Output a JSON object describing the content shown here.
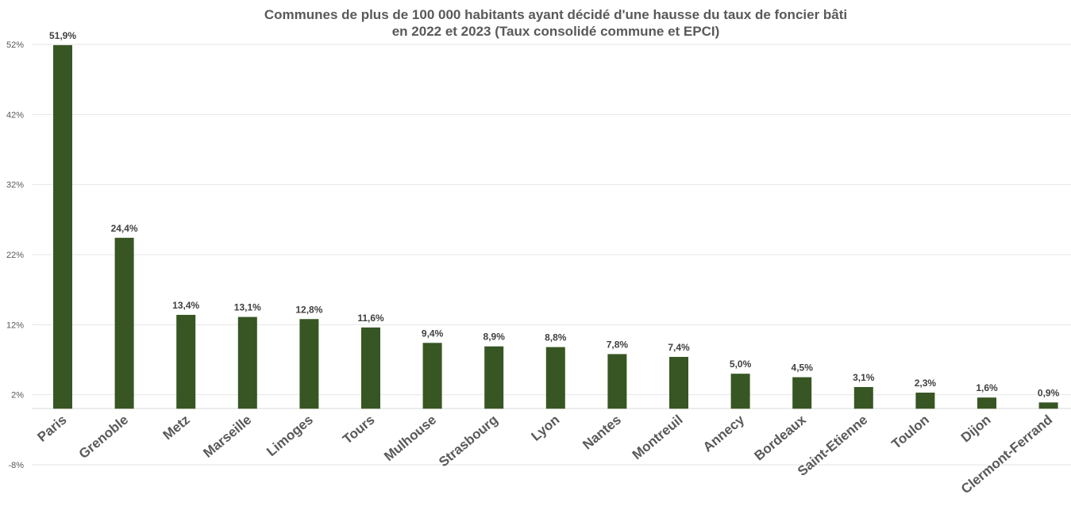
{
  "chart_data": {
    "type": "bar",
    "title_line1": "Communes de plus de 100 000 habitants ayant décidé d'une hausse du taux de foncier bâti",
    "title_line2": "en 2022 et 2023 (Taux consolidé commune et EPCI)",
    "xlabel": "",
    "ylabel": "",
    "categories": [
      "Paris",
      "Grenoble",
      "Metz",
      "Marseille",
      "Limoges",
      "Tours",
      "Mulhouse",
      "Strasbourg",
      "Lyon",
      "Nantes",
      "Montreuil",
      "Annecy",
      "Bordeaux",
      "Saint-Etienne",
      "Toulon",
      "Dijon",
      "Clermont-Ferrand"
    ],
    "values": [
      51.9,
      24.4,
      13.4,
      13.1,
      12.8,
      11.6,
      9.4,
      8.9,
      8.8,
      7.8,
      7.4,
      5.0,
      4.5,
      3.1,
      2.3,
      1.6,
      0.9
    ],
    "value_labels": [
      "51,9%",
      "24,4%",
      "13,4%",
      "13,1%",
      "12,8%",
      "11,6%",
      "9,4%",
      "8,9%",
      "8,8%",
      "7,8%",
      "7,4%",
      "5,0%",
      "4,5%",
      "3,1%",
      "2,3%",
      "1,6%",
      "0,9%"
    ],
    "yticks": [
      52,
      42,
      32,
      22,
      12,
      2,
      -8
    ],
    "ytick_labels": [
      "52%",
      "42%",
      "32%",
      "22%",
      "12%",
      "2%",
      "-8%"
    ],
    "ylim": [
      -8,
      52
    ],
    "grid": true,
    "legend": "none",
    "bar_color": "#375623"
  }
}
